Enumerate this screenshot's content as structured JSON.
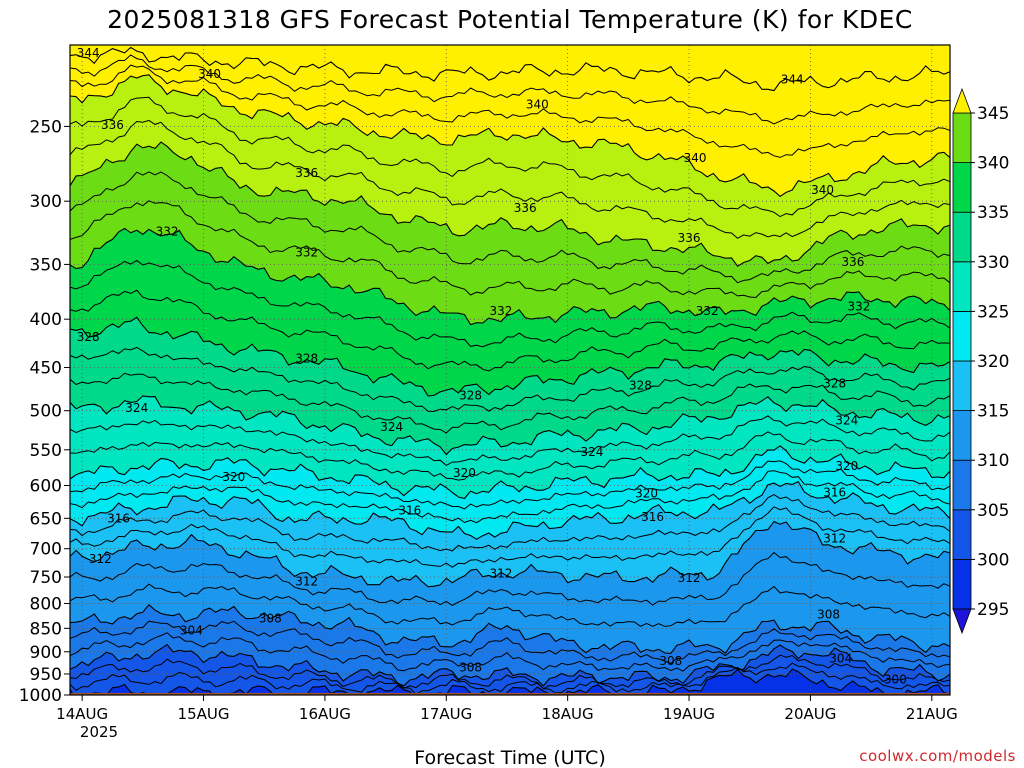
{
  "chart_data": {
    "type": "heatmap",
    "title": "2025081318 GFS Forecast Potential Temperature (K) for KDEC",
    "xlabel": "Forecast Time (UTC)",
    "ylabel": "",
    "x_ticks": [
      "14AUG",
      "15AUG",
      "16AUG",
      "17AUG",
      "18AUG",
      "19AUG",
      "20AUG",
      "21AUG"
    ],
    "x_year": "2025",
    "y_ticks": [
      250,
      300,
      350,
      400,
      450,
      500,
      550,
      600,
      650,
      700,
      750,
      800,
      850,
      900,
      950,
      1000
    ],
    "ylim": [
      1000,
      205
    ],
    "y_scale": "log",
    "grid": true,
    "colorbar": {
      "levels": [
        295,
        300,
        305,
        310,
        315,
        320,
        325,
        330,
        335,
        340,
        345
      ],
      "labels": [
        "295",
        "300",
        "305",
        "310",
        "315",
        "320",
        "325",
        "330",
        "335",
        "340",
        "345"
      ],
      "colors": [
        "#1e14d8",
        "#0532e6",
        "#1457e8",
        "#1b78e8",
        "#1b97ee",
        "#1bc0f5",
        "#00e8f0",
        "#00e6c0",
        "#00d88a",
        "#00d64a",
        "#6cdc14",
        "#b8f010",
        "#fff000"
      ],
      "extend": "both"
    },
    "isentropes": [
      {
        "theta": 300,
        "pressure": [
          993,
          993,
          993,
          993,
          993,
          993,
          993,
          993,
          993,
          993,
          993,
          995,
          960,
          950,
          968,
          995,
          993
        ],
        "label_day": 20.55
      },
      {
        "theta": 304,
        "pressure": [
          928,
          905,
          900,
          915,
          935,
          948,
          960,
          950,
          952,
          958,
          955,
          960,
          938,
          902,
          900,
          935,
          950
        ],
        "label_day": 20.25
      },
      {
        "theta": 308,
        "pressure": [
          840,
          820,
          822,
          816,
          832,
          844,
          876,
          880,
          845,
          880,
          890,
          892,
          888,
          840,
          848,
          870,
          885
        ],
        "label_day": 20.1
      },
      {
        "theta": 312,
        "pressure": [
          715,
          698,
          688,
          705,
          738,
          748,
          760,
          755,
          740,
          745,
          752,
          748,
          740,
          648,
          690,
          705,
          715
        ],
        "label_day": 20.25
      },
      {
        "theta": 316,
        "pressure": [
          648,
          635,
          622,
          622,
          652,
          650,
          655,
          678,
          670,
          655,
          650,
          640,
          640,
          598,
          615,
          630,
          640
        ],
        "label_day": 20.2
      },
      {
        "theta": 320,
        "pressure": [
          585,
          572,
          570,
          568,
          580,
          590,
          602,
          610,
          605,
          596,
          590,
          585,
          585,
          552,
          565,
          575,
          580
        ],
        "label_day": 20.3
      },
      {
        "theta": 324,
        "pressure": [
          498,
          488,
          495,
          500,
          510,
          525,
          538,
          545,
          540,
          530,
          525,
          518,
          505,
          488,
          498,
          505,
          510
        ],
        "label_day": 20.3
      },
      {
        "theta": 328,
        "pressure": [
          412,
          405,
          418,
          430,
          440,
          450,
          468,
          478,
          470,
          462,
          455,
          448,
          445,
          432,
          440,
          445,
          450
        ],
        "label_day": 20.2
      },
      {
        "theta": 332,
        "pressure": [
          348,
          318,
          332,
          352,
          362,
          368,
          385,
          398,
          400,
          395,
          392,
          388,
          395,
          385,
          380,
          380,
          385
        ],
        "label_day": 20.3
      },
      {
        "theta": 336,
        "pressure": [
          285,
          262,
          268,
          290,
          295,
          300,
          312,
          322,
          318,
          320,
          330,
          335,
          342,
          350,
          330,
          320,
          318
        ],
        "label_day": 20.35
      },
      {
        "theta": 340,
        "pressure": [
          235,
          222,
          230,
          240,
          246,
          250,
          256,
          258,
          254,
          258,
          262,
          270,
          282,
          292,
          285,
          275,
          270
        ],
        "label_day": 20.1
      },
      {
        "theta": 344,
        "pressure": [
          210,
          209,
          212,
          214,
          216,
          218,
          219,
          220,
          219,
          218,
          218,
          220,
          222,
          226,
          224,
          222,
          220
        ],
        "label_day": 19.85
      }
    ],
    "contour_labels": [
      {
        "value": "344",
        "day": 14.05,
        "p": 209
      },
      {
        "value": "340",
        "day": 15.05,
        "p": 220
      },
      {
        "value": "344",
        "day": 19.85,
        "p": 223
      },
      {
        "value": "340",
        "day": 17.75,
        "p": 237
      },
      {
        "value": "336",
        "day": 14.25,
        "p": 249
      },
      {
        "value": "340",
        "day": 19.05,
        "p": 270
      },
      {
        "value": "336",
        "day": 15.85,
        "p": 280
      },
      {
        "value": "340",
        "day": 20.1,
        "p": 292
      },
      {
        "value": "336",
        "day": 17.65,
        "p": 305
      },
      {
        "value": "332",
        "day": 14.7,
        "p": 323
      },
      {
        "value": "336",
        "day": 19.0,
        "p": 328
      },
      {
        "value": "332",
        "day": 15.85,
        "p": 340
      },
      {
        "value": "336",
        "day": 20.35,
        "p": 348
      },
      {
        "value": "332",
        "day": 17.45,
        "p": 392
      },
      {
        "value": "332",
        "day": 20.4,
        "p": 388
      },
      {
        "value": "332",
        "day": 19.15,
        "p": 392
      },
      {
        "value": "328",
        "day": 14.05,
        "p": 418
      },
      {
        "value": "328",
        "day": 15.85,
        "p": 440
      },
      {
        "value": "328",
        "day": 18.6,
        "p": 470
      },
      {
        "value": "328",
        "day": 20.2,
        "p": 468
      },
      {
        "value": "328",
        "day": 17.2,
        "p": 482
      },
      {
        "value": "324",
        "day": 14.45,
        "p": 497
      },
      {
        "value": "324",
        "day": 16.55,
        "p": 520
      },
      {
        "value": "324",
        "day": 20.3,
        "p": 512
      },
      {
        "value": "324",
        "day": 18.2,
        "p": 553
      },
      {
        "value": "320",
        "day": 15.25,
        "p": 588
      },
      {
        "value": "320",
        "day": 17.15,
        "p": 582
      },
      {
        "value": "320",
        "day": 20.3,
        "p": 572
      },
      {
        "value": "320",
        "day": 18.65,
        "p": 612
      },
      {
        "value": "316",
        "day": 20.2,
        "p": 610
      },
      {
        "value": "316",
        "day": 14.3,
        "p": 650
      },
      {
        "value": "316",
        "day": 16.7,
        "p": 638
      },
      {
        "value": "316",
        "day": 18.7,
        "p": 648
      },
      {
        "value": "312",
        "day": 20.2,
        "p": 683
      },
      {
        "value": "312",
        "day": 14.15,
        "p": 718
      },
      {
        "value": "312",
        "day": 15.85,
        "p": 758
      },
      {
        "value": "312",
        "day": 17.45,
        "p": 744
      },
      {
        "value": "312",
        "day": 19.0,
        "p": 752
      },
      {
        "value": "308",
        "day": 15.55,
        "p": 830
      },
      {
        "value": "308",
        "day": 17.2,
        "p": 935
      },
      {
        "value": "308",
        "day": 18.85,
        "p": 920
      },
      {
        "value": "308",
        "day": 20.15,
        "p": 822
      },
      {
        "value": "304",
        "day": 14.9,
        "p": 855
      },
      {
        "value": "304",
        "day": 20.25,
        "p": 915
      },
      {
        "value": "300",
        "day": 20.7,
        "p": 963
      }
    ],
    "surface": {
      "pressure_top": 995,
      "color": "#a0522d"
    }
  },
  "credit": "coolwx.com/models"
}
